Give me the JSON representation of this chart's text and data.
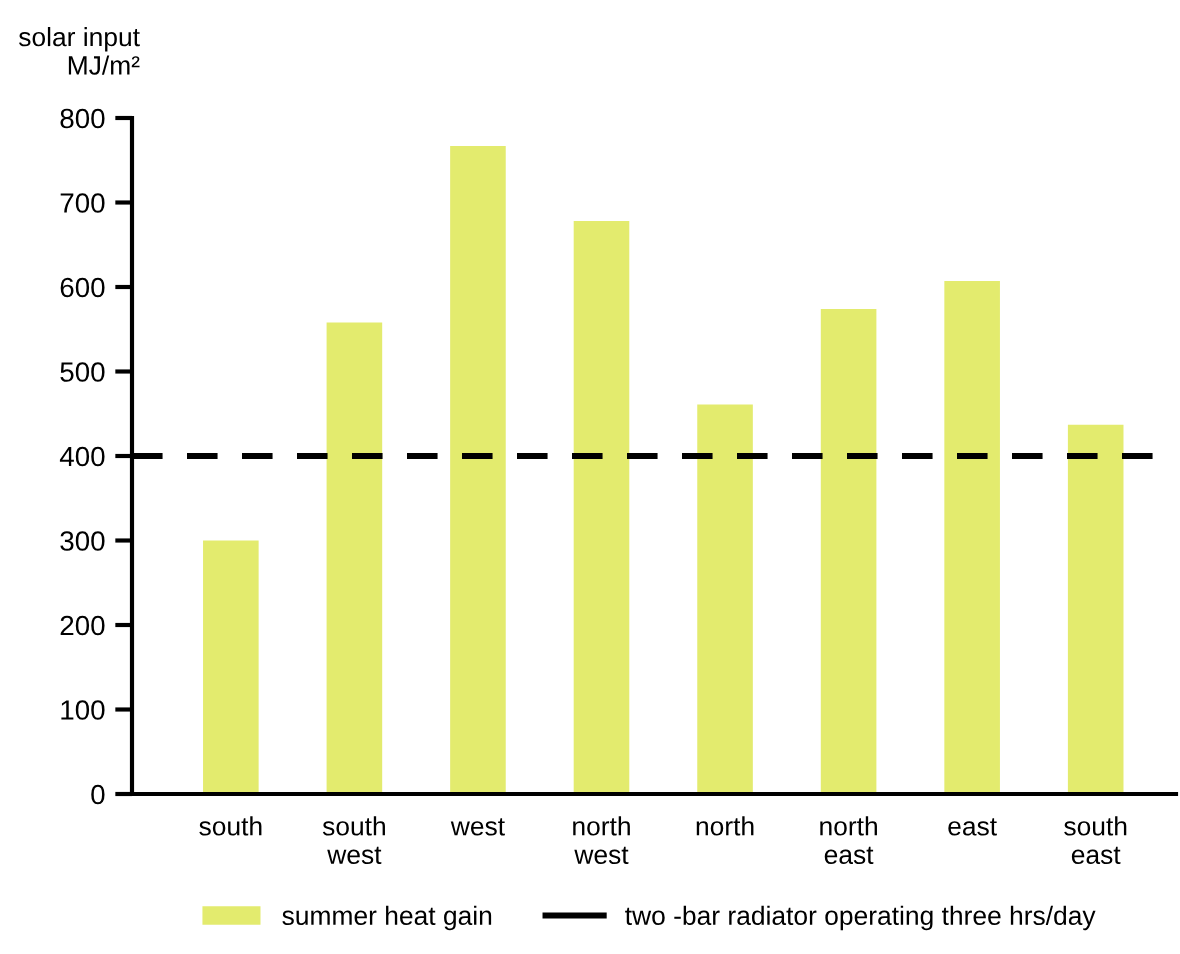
{
  "chart_data": {
    "type": "bar",
    "ylabel": "solar input\nMJ/m²",
    "categories": [
      "south",
      "south\nwest",
      "west",
      "north\nwest",
      "north",
      "north\neast",
      "east",
      "south\neast"
    ],
    "series": [
      {
        "name": "summer heat gain",
        "color": "#e3eb6e",
        "values": [
          300,
          558,
          767,
          678,
          461,
          574,
          607,
          437
        ]
      }
    ],
    "ylim": [
      0,
      800
    ],
    "yticks": [
      0,
      100,
      200,
      300,
      400,
      500,
      600,
      700,
      800
    ],
    "ref_lines": [
      {
        "axis": "y",
        "value": 400,
        "label": "two -bar radiator operating three hrs/day",
        "color": "#000000",
        "line_style": "dashed"
      }
    ],
    "grid": false,
    "legend": "bottom"
  }
}
